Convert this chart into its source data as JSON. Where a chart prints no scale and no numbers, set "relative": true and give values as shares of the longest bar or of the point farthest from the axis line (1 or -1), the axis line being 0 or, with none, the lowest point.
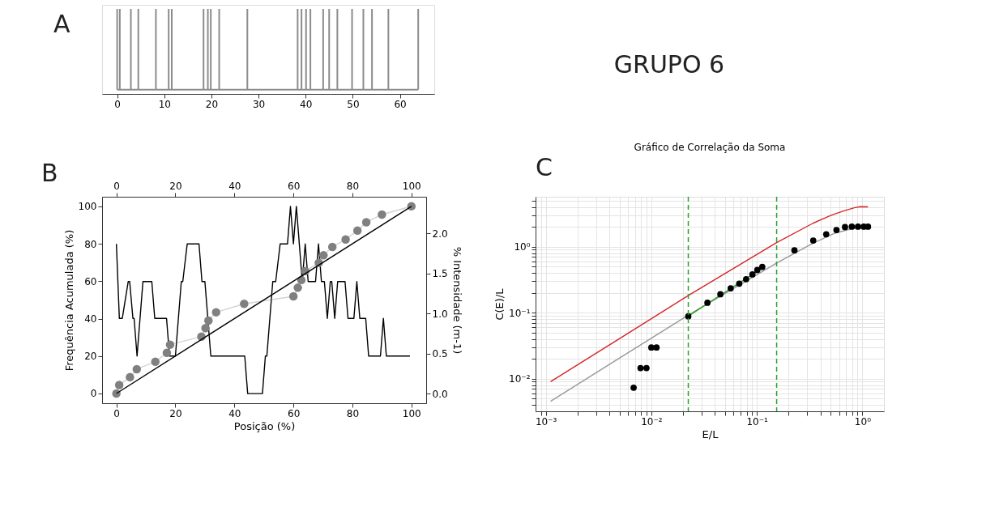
{
  "chart_data": [
    {
      "type": "bar",
      "relative": true,
      "x": [
        0,
        0.56,
        2.91,
        4.49,
        8.22,
        10.93,
        11.59,
        18.33,
        19.25,
        19.87,
        21.65,
        27.63,
        38.3,
        39.12,
        40.09,
        41.01,
        43.72,
        44.99,
        46.73,
        49.85,
        52.25,
        54.08,
        57.56,
        63.89
      ],
      "values": [
        1,
        1,
        1,
        1,
        1,
        1,
        1,
        1,
        1,
        1,
        1,
        1,
        1,
        1,
        1,
        1,
        1,
        1,
        1,
        1,
        1,
        1,
        1,
        1
      ],
      "color": "#8c8c8c",
      "xlim": [
        -3.2,
        67.3
      ],
      "xticks": [
        0,
        10,
        20,
        30,
        40,
        50,
        60
      ],
      "tick_labels": "x",
      "grid": false,
      "annotations": [
        "A",
        "GRUPO 6"
      ]
    },
    {
      "type": "line",
      "xlabel": "Posição (%)",
      "ylabel": "Frequência Acumulada (%)",
      "y2label": "% Intensidade (m-1)",
      "grid": false,
      "xlim": [
        -4.85,
        105
      ],
      "xticks": [
        0,
        20,
        40,
        60,
        80,
        100
      ],
      "x2lim": [
        -4.85,
        105
      ],
      "x2ticks": [
        0,
        20,
        40,
        60,
        80,
        100
      ],
      "ylim": [
        -5.2,
        105.1
      ],
      "yticks": [
        0,
        20,
        40,
        60,
        80,
        100
      ],
      "y2lim": [
        -0.12,
        2.46
      ],
      "y2ticks": [
        {
          "value": 0,
          "label": "0.0"
        },
        0.5,
        {
          "value": 1,
          "label": "1.0"
        },
        1.5,
        {
          "value": 2,
          "label": "2.0"
        }
      ],
      "series": [
        {
          "type": "line",
          "marker": "circle",
          "color": "#808080",
          "x": [
            0,
            0.95,
            4.6,
            6.9,
            13.2,
            17.1,
            18.2,
            28.8,
            30.2,
            31.2,
            33.8,
            43.3,
            60,
            61.5,
            62.7,
            64,
            68.6,
            70.2,
            73.2,
            77.7,
            81.7,
            84.7,
            90,
            100
          ],
          "values": [
            0,
            4.5,
            8.7,
            13,
            17,
            21.7,
            26.1,
            30.4,
            34.9,
            38.9,
            43.4,
            47.9,
            51.9,
            56.5,
            60.6,
            65.4,
            69.8,
            73.8,
            78.3,
            82.3,
            87,
            91.5,
            95.6,
            100
          ]
        },
        {
          "type": "line",
          "color": "#000000",
          "x": [
            0,
            100
          ],
          "values": [
            0,
            100
          ]
        },
        {
          "type": "line",
          "axis": "y2",
          "color": "#000000",
          "x": [
            0,
            1,
            2,
            4,
            4.5,
            5.6,
            6,
            7,
            9,
            12,
            13,
            17,
            18,
            20,
            22,
            22.5,
            24,
            28,
            29,
            30,
            32,
            43.5,
            44.5,
            49.5,
            50.5,
            51,
            53,
            54,
            55.5,
            58,
            59,
            60,
            61,
            63,
            64,
            65,
            67.5,
            68.5,
            69.5,
            70.5,
            71.5,
            72.5,
            73,
            74,
            75,
            77.5,
            78.5,
            80.5,
            81.5,
            82.5,
            84.5,
            85.5,
            89.5,
            90.5,
            91.5,
            99.5
          ],
          "values": [
            1.87,
            0.94,
            0.94,
            1.4,
            1.4,
            0.94,
            0.94,
            0.47,
            1.4,
            1.4,
            0.94,
            0.94,
            0.47,
            0.47,
            1.4,
            1.4,
            1.87,
            1.87,
            1.4,
            1.4,
            0.47,
            0.47,
            0,
            0,
            0.47,
            0.47,
            1.4,
            1.4,
            1.87,
            1.87,
            2.34,
            1.87,
            2.34,
            1.4,
            1.87,
            1.4,
            1.4,
            1.87,
            1.4,
            1.4,
            0.94,
            1.4,
            1.4,
            0.94,
            1.4,
            1.4,
            0.94,
            0.94,
            1.4,
            0.94,
            0.94,
            0.47,
            0.47,
            0.94,
            0.47,
            0.47
          ]
        }
      ],
      "annotations": [
        "B"
      ]
    },
    {
      "type": "scatter",
      "title": "Gráfico de Correlação da Soma",
      "xlabel": "E/L",
      "ylabel": "C(E)/L",
      "log": "xy",
      "grid": true,
      "xlim": [
        0.0008,
        1.6
      ],
      "ylim": [
        0.0032,
        5.7
      ],
      "xticks": [
        {
          "value": 0.0009,
          "label": null
        },
        {
          "value": 0.001,
          "label": "10⁻³"
        },
        {
          "value": 0.002,
          "label": null
        },
        {
          "value": 0.003,
          "label": null
        },
        {
          "value": 0.004,
          "label": null
        },
        {
          "value": 0.005,
          "label": null
        },
        {
          "value": 0.006,
          "label": null
        },
        {
          "value": 0.007,
          "label": null
        },
        {
          "value": 0.008,
          "label": null
        },
        {
          "value": 0.009,
          "label": null
        },
        {
          "value": 0.01,
          "label": "10⁻²"
        },
        {
          "value": 0.02,
          "label": null
        },
        {
          "value": 0.03,
          "label": null
        },
        {
          "value": 0.04,
          "label": null
        },
        {
          "value": 0.05,
          "label": null
        },
        {
          "value": 0.06,
          "label": null
        },
        {
          "value": 0.07,
          "label": null
        },
        {
          "value": 0.08,
          "label": null
        },
        {
          "value": 0.09,
          "label": null
        },
        {
          "value": 0.1,
          "label": "10⁻¹"
        },
        {
          "value": 0.2,
          "label": null
        },
        {
          "value": 0.3,
          "label": null
        },
        {
          "value": 0.4,
          "label": null
        },
        {
          "value": 0.5,
          "label": null
        },
        {
          "value": 0.6,
          "label": null
        },
        {
          "value": 0.7,
          "label": null
        },
        {
          "value": 0.8,
          "label": null
        },
        {
          "value": 0.9,
          "label": null
        },
        {
          "value": 1,
          "label": "10⁰"
        }
      ],
      "yticks": [
        {
          "value": 0.004,
          "label": null
        },
        {
          "value": 0.005,
          "label": null
        },
        {
          "value": 0.006,
          "label": null
        },
        {
          "value": 0.007,
          "label": null
        },
        {
          "value": 0.008,
          "label": null
        },
        {
          "value": 0.009,
          "label": null
        },
        {
          "value": 0.01,
          "label": "10⁻²"
        },
        {
          "value": 0.02,
          "label": null
        },
        {
          "value": 0.03,
          "label": null
        },
        {
          "value": 0.04,
          "label": null
        },
        {
          "value": 0.05,
          "label": null
        },
        {
          "value": 0.06,
          "label": null
        },
        {
          "value": 0.07,
          "label": null
        },
        {
          "value": 0.08,
          "label": null
        },
        {
          "value": 0.09,
          "label": null
        },
        {
          "value": 0.1,
          "label": "10⁻¹"
        },
        {
          "value": 0.2,
          "label": null
        },
        {
          "value": 0.3,
          "label": null
        },
        {
          "value": 0.4,
          "label": null
        },
        {
          "value": 0.5,
          "label": null
        },
        {
          "value": 0.6,
          "label": null
        },
        {
          "value": 0.7,
          "label": null
        },
        {
          "value": 0.8,
          "label": null
        },
        {
          "value": 0.9,
          "label": null
        },
        {
          "value": 1,
          "label": "10⁰"
        },
        {
          "value": 2,
          "label": null
        },
        {
          "value": 3,
          "label": null
        },
        {
          "value": 4,
          "label": null
        },
        {
          "value": 5,
          "label": null
        }
      ],
      "series": [
        {
          "type": "line",
          "color": "#d62728",
          "x": [
            0.00111,
            0.01,
            0.0223,
            0.154,
            0.34,
            0.5,
            0.66,
            0.85,
            0.96,
            1.13
          ],
          "values": [
            0.009,
            0.081,
            0.181,
            1.15,
            2.26,
            2.96,
            3.47,
            3.9,
            4.04,
            4.0
          ]
        },
        {
          "type": "line",
          "color": "#999999",
          "x": [
            0.00111,
            0.0223,
            0.154,
            0.34,
            0.55,
            0.8,
            1.13
          ],
          "values": [
            0.00455,
            0.0915,
            0.563,
            1.13,
            1.6,
            1.88,
            1.96
          ]
        },
        {
          "type": "line",
          "color": "#2ca02c",
          "x": [
            0.0223,
            0.1
          ],
          "values": [
            0.088,
            0.42
          ]
        },
        {
          "type": "scatter",
          "color": "#000000",
          "x": [
            0.0068,
            0.0079,
            0.009,
            0.01,
            0.0112,
            0.0224,
            0.034,
            0.0451,
            0.0565,
            0.0681,
            0.0791,
            0.0908,
            0.101,
            0.1125,
            0.227,
            0.342,
            0.454,
            0.568,
            0.684,
            0.794,
            0.908,
            1.03,
            1.13
          ],
          "values": [
            0.0073,
            0.0145,
            0.0145,
            0.0296,
            0.0296,
            0.088,
            0.141,
            0.19,
            0.234,
            0.275,
            0.321,
            0.38,
            0.443,
            0.493,
            0.88,
            1.24,
            1.54,
            1.79,
            1.98,
            2.01,
            2.01,
            2.01,
            2.01
          ]
        }
      ],
      "ref_lines": [
        {
          "axis": "x",
          "value": 0.0224,
          "color": "#2ca02c",
          "line_style": "dashed"
        },
        {
          "axis": "x",
          "value": 0.154,
          "color": "#2ca02c",
          "line_style": "dashed"
        }
      ],
      "annotations": [
        "C"
      ]
    }
  ]
}
